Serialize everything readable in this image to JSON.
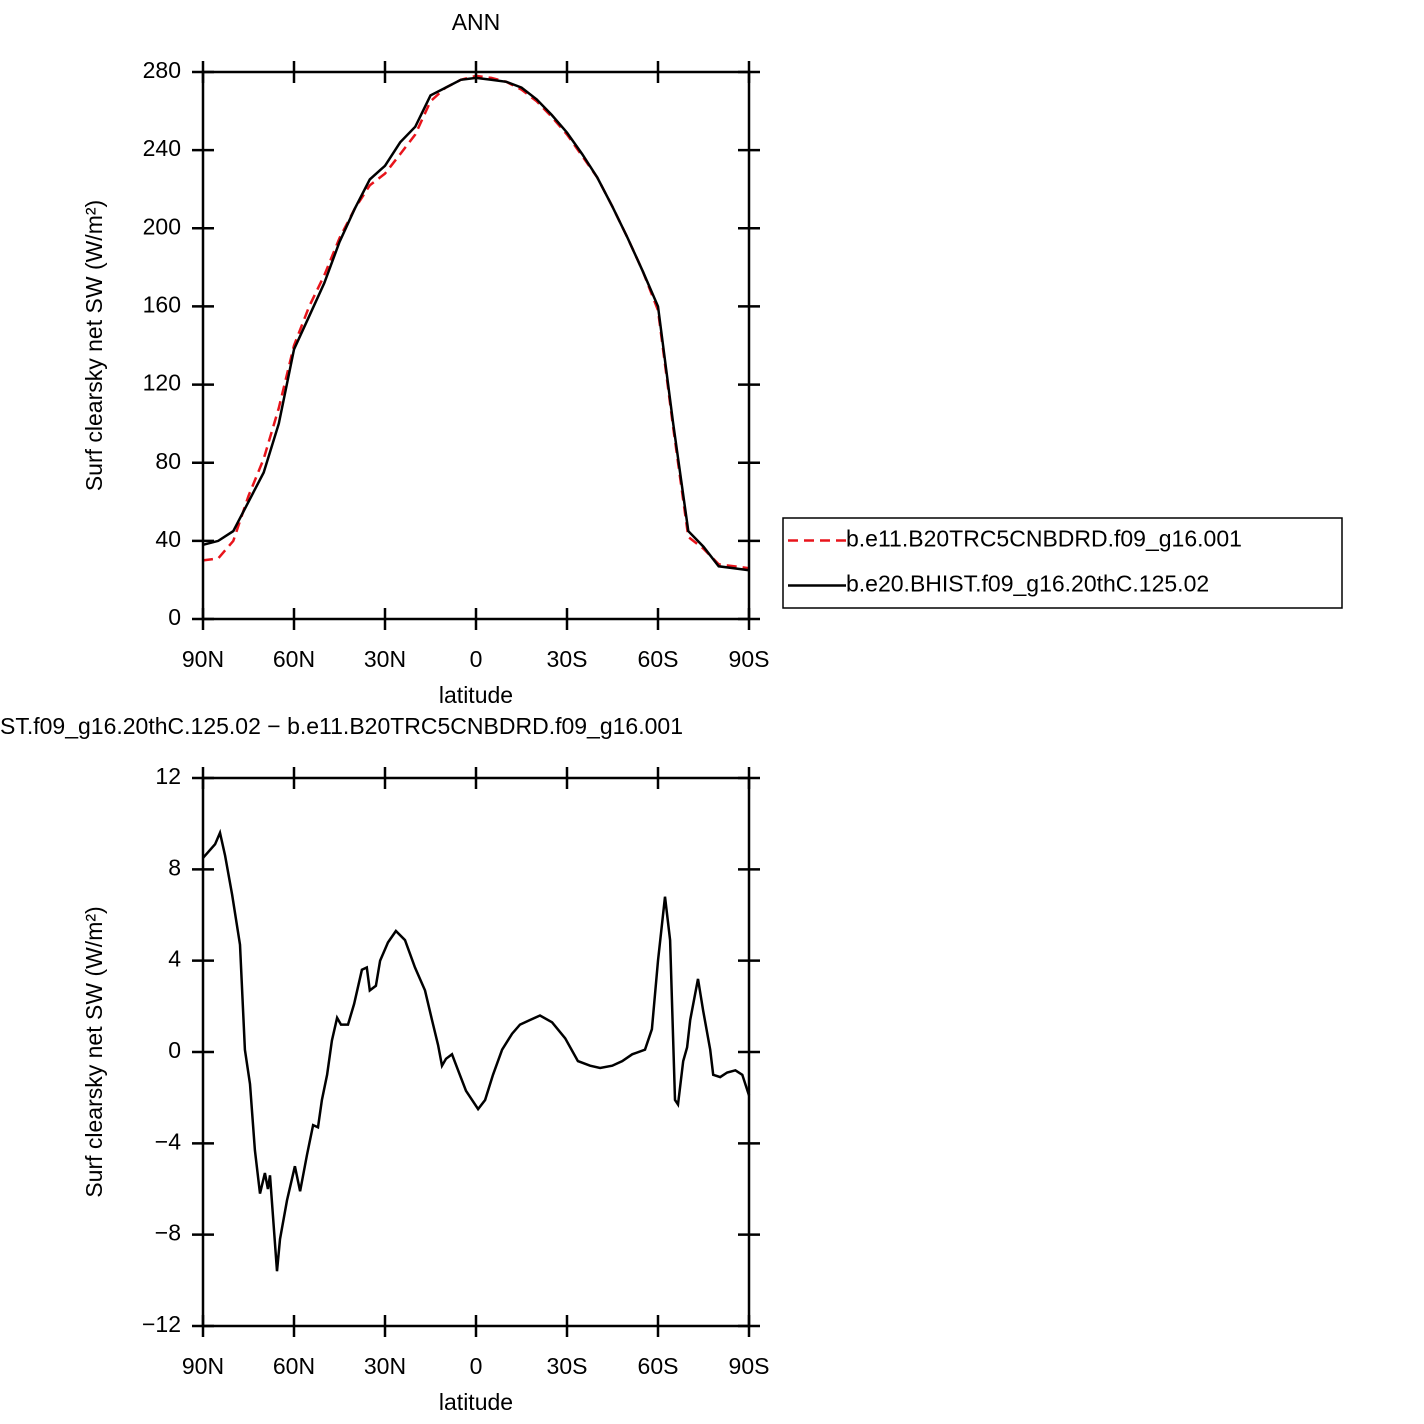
{
  "chart_data": [
    {
      "type": "line",
      "title": "ANN",
      "x_label": "latitude",
      "y_label": "Surf clearsky net SW (W/m²)",
      "x": [
        90,
        85,
        80,
        75,
        70,
        65,
        60,
        55,
        50,
        45,
        40,
        35,
        30,
        25,
        20,
        15,
        10,
        5,
        0,
        -5,
        -10,
        -15,
        -20,
        -25,
        -30,
        -35,
        -40,
        -45,
        -50,
        -55,
        -60,
        -65,
        -70,
        -75,
        -80,
        -85,
        -90
      ],
      "series": [
        {
          "name": "b.e11.B20TRC5CNBDRD.f09_g16.001",
          "color": "#e8141b",
          "dash": "dashed",
          "values": [
            30,
            31,
            40,
            63,
            82,
            108,
            140,
            160,
            176,
            195,
            210,
            222,
            228,
            238,
            248,
            265,
            272,
            276,
            278,
            277,
            275,
            271,
            265,
            257,
            248,
            237,
            226,
            211,
            195,
            178,
            158,
            98,
            42,
            36,
            28,
            27,
            26
          ]
        },
        {
          "name": "b.e20.BHIST.f09_g16.20thC.125.02",
          "color": "#000000",
          "dash": "solid",
          "values": [
            38,
            40,
            45,
            60,
            75,
            100,
            138,
            155,
            172,
            193,
            210,
            225,
            232,
            244,
            252,
            268,
            272,
            276,
            277,
            276,
            275,
            272,
            266,
            258,
            249,
            238,
            226,
            211,
            195,
            178,
            160,
            100,
            45,
            37,
            27,
            26,
            25
          ]
        }
      ],
      "xlim": [
        90,
        -90
      ],
      "xticks": [
        {
          "value": 90,
          "label": "90N"
        },
        {
          "value": 60,
          "label": "60N"
        },
        {
          "value": 30,
          "label": "30N"
        },
        0,
        {
          "value": -30,
          "label": "30S"
        },
        {
          "value": -60,
          "label": "60S"
        },
        {
          "value": -90,
          "label": "90S"
        }
      ],
      "ylim": [
        0,
        280
      ],
      "yticks": [
        0,
        40,
        80,
        120,
        160,
        200,
        240,
        280
      ],
      "legend": "right"
    },
    {
      "type": "line",
      "title": "ST.f09_g16.20thC.125.02 − b.e11.B20TRC5CNBDRD.f09_g16.001",
      "x_label": "latitude",
      "y_label": "Surf clearsky net SW (W/m²)",
      "x": [
        90,
        86,
        84.4,
        82.7,
        80.4,
        77.8,
        76.2,
        74.5,
        72.9,
        71.2,
        69.6,
        68.6,
        67.9,
        65.6,
        64.6,
        62.3,
        59.7,
        58,
        55.7,
        53.7,
        52.1,
        50.8,
        49.1,
        47.5,
        45.8,
        44.5,
        42.2,
        40.2,
        37.6,
        36,
        35,
        33,
        31.6,
        29,
        26.4,
        23.4,
        20.1,
        16.8,
        14.5,
        12.5,
        11.2,
        9.9,
        7.9,
        5.9,
        3.3,
        -0.7,
        -3,
        -5.6,
        -8.6,
        -11.9,
        -14.5,
        -17.8,
        -21.1,
        -25.1,
        -29.4,
        -33.6,
        -37.6,
        -40.9,
        -44.9,
        -48.2,
        -51.5,
        -55.7,
        -58,
        -60,
        -62.3,
        -64,
        -65.6,
        -66.6,
        -68.3,
        -69.6,
        -70.6,
        -73.2,
        -74.9,
        -77.2,
        -78.2,
        -80.5,
        -82.8,
        -85.5,
        -87.8,
        -90
      ],
      "series": [
        {
          "color": "#000000",
          "dash": "solid",
          "values": [
            8.5,
            9.1,
            9.6,
            8.6,
            6.9,
            4.7,
            0.1,
            -1.4,
            -4.3,
            -6.2,
            -5.3,
            -6.0,
            -5.4,
            -9.6,
            -8.2,
            -6.5,
            -5.0,
            -6.1,
            -4.5,
            -3.2,
            -3.3,
            -2.1,
            -1.0,
            0.5,
            1.5,
            1.2,
            1.2,
            2.1,
            3.6,
            3.7,
            2.7,
            2.9,
            4.0,
            4.8,
            5.3,
            4.9,
            3.7,
            2.7,
            1.4,
            0.3,
            -0.6,
            -0.3,
            -0.1,
            -0.8,
            -1.7,
            -2.5,
            -2.1,
            -1.0,
            0.1,
            0.8,
            1.2,
            1.4,
            1.6,
            1.3,
            0.6,
            -0.4,
            -0.6,
            -0.7,
            -0.6,
            -0.4,
            -0.1,
            0.1,
            1.0,
            4.0,
            6.8,
            4.9,
            -2.1,
            -2.3,
            -0.4,
            0.2,
            1.4,
            3.2,
            1.8,
            0.1,
            -1.0,
            -1.1,
            -0.9,
            -0.8,
            -1.0,
            -1.9
          ]
        }
      ],
      "xlim": [
        90,
        -90
      ],
      "xticks": [
        {
          "value": 90,
          "label": "90N"
        },
        {
          "value": 60,
          "label": "60N"
        },
        {
          "value": 30,
          "label": "30N"
        },
        0,
        {
          "value": -30,
          "label": "30S"
        },
        {
          "value": -60,
          "label": "60S"
        },
        {
          "value": -90,
          "label": "90S"
        }
      ],
      "ylim": [
        -12,
        12
      ],
      "yticks": [
        {
          "value": -12,
          "label": "−12"
        },
        {
          "value": -8,
          "label": "−8"
        },
        {
          "value": -4,
          "label": "−4"
        },
        0,
        4,
        8,
        12
      ]
    }
  ]
}
